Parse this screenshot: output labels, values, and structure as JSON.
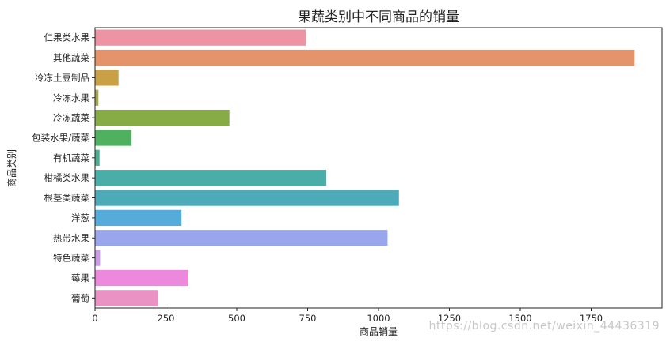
{
  "chart_data": {
    "type": "bar",
    "orientation": "horizontal",
    "title": "果蔬类别中不同商品的销量",
    "xlabel": "商品销量",
    "ylabel": "商品类别",
    "categories": [
      "仁果类水果",
      "其他蔬菜",
      "冷冻土豆制品",
      "冷冻水果",
      "冷冻蔬菜",
      "包装水果/蔬菜",
      "有机蔬菜",
      "柑橘类水果",
      "根茎类蔬菜",
      "洋葱",
      "热带水果",
      "特色蔬菜",
      "莓果",
      "葡萄"
    ],
    "values": [
      744,
      1903,
      83,
      12,
      474,
      129,
      16,
      816,
      1072,
      305,
      1032,
      18,
      329,
      222
    ],
    "colors": [
      "#ec93a4",
      "#e4936a",
      "#c9a046",
      "#a7a844",
      "#87ab45",
      "#4fb15f",
      "#4aaf91",
      "#4aaea8",
      "#4caab9",
      "#55abd9",
      "#9aa6ec",
      "#cb9ae9",
      "#ec89dd",
      "#ea92c3"
    ],
    "xlim": [
      0,
      2000
    ],
    "xticks": [
      0,
      250,
      500,
      750,
      1000,
      1250,
      1500,
      1750
    ],
    "grid": false,
    "legend": "none"
  },
  "watermark": "https://blog.csdn.net/weixin_44436319"
}
